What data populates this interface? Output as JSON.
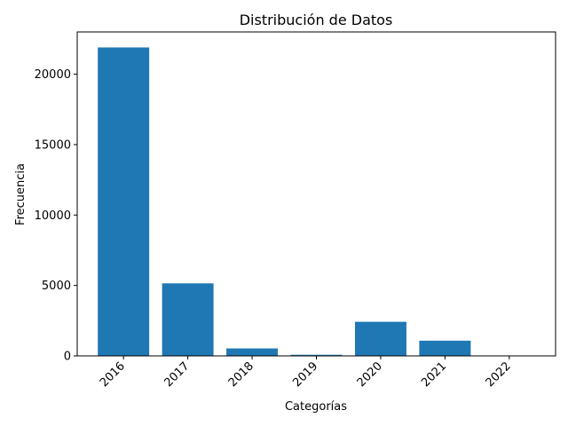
{
  "chart_data": {
    "type": "bar",
    "title": "Distribución de Datos",
    "xlabel": "Categorías",
    "ylabel": "Frecuencia",
    "categories": [
      "2016",
      "2017",
      "2018",
      "2019",
      "2020",
      "2021",
      "2022"
    ],
    "values": [
      21900,
      5150,
      530,
      80,
      2420,
      1080,
      15
    ],
    "ylim": [
      0,
      23000
    ],
    "yticks": [
      0,
      5000,
      10000,
      15000,
      20000
    ],
    "grid": false,
    "bar_color": "#1f77b4"
  }
}
